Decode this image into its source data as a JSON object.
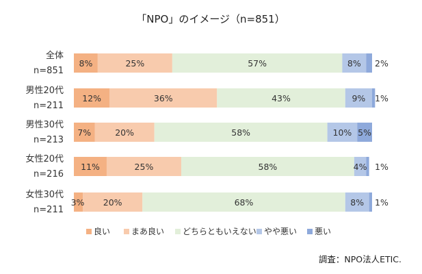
{
  "chart_data": {
    "type": "bar",
    "orientation": "horizontal",
    "stacked": true,
    "percent_stacked": true,
    "title": "「NPO」のイメージ（n=851）",
    "categories": [
      [
        "全体",
        "n=851"
      ],
      [
        "男性20代",
        "n=211"
      ],
      [
        "男性30代",
        "n=213"
      ],
      [
        "女性20代",
        "n=216"
      ],
      [
        "女性30代",
        "n=211"
      ]
    ],
    "series": [
      {
        "name": "良い",
        "color": "#F4B183",
        "values": [
          8,
          12,
          7,
          11,
          3
        ]
      },
      {
        "name": "まあ良い",
        "color": "#F8CBAD",
        "values": [
          25,
          36,
          20,
          25,
          20
        ]
      },
      {
        "name": "どちらともいえない",
        "color": "#E2EFDA",
        "values": [
          57,
          43,
          58,
          58,
          68
        ]
      },
      {
        "name": "やや悪い",
        "color": "#B4C7E7",
        "values": [
          8,
          9,
          10,
          4,
          8
        ]
      },
      {
        "name": "悪い",
        "color": "#8EA9DB",
        "values": [
          2,
          1,
          5,
          1,
          1
        ]
      }
    ],
    "xlim": [
      0,
      100
    ],
    "legend_position": "bottom",
    "source": "調査：NPO法人ETIC."
  }
}
